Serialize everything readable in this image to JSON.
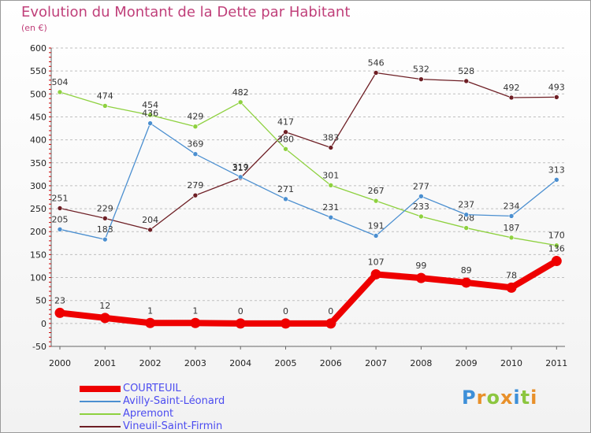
{
  "header": {
    "title": "Evolution du Montant de la Dette par Habitant",
    "unit": "(en €)"
  },
  "chart_data": {
    "type": "line",
    "x": [
      "2000",
      "2001",
      "2002",
      "2003",
      "2004",
      "2005",
      "2006",
      "2007",
      "2008",
      "2009",
      "2010",
      "2011"
    ],
    "ylim": [
      -50,
      600
    ],
    "yticks": [
      -50,
      0,
      50,
      100,
      150,
      200,
      250,
      300,
      350,
      400,
      450,
      500,
      550,
      600
    ],
    "grid": "horizontal dashed",
    "legend_position": "bottom-left",
    "series": [
      {
        "name": "COURTEUIL",
        "color": "#ee0000",
        "values": [
          23,
          12,
          1,
          1,
          0,
          0,
          0,
          107,
          99,
          89,
          78,
          136
        ]
      },
      {
        "name": "Avilly-Saint-Léonard",
        "color": "#4b8fd0",
        "values": [
          205,
          183,
          436,
          369,
          319,
          271,
          231,
          191,
          277,
          237,
          234,
          313
        ]
      },
      {
        "name": "Apremont",
        "color": "#8ed13f",
        "values": [
          504,
          474,
          454,
          429,
          482,
          380,
          301,
          267,
          233,
          208,
          187,
          170
        ]
      },
      {
        "name": "Vineuil-Saint-Firmin",
        "color": "#6e1f25",
        "values": [
          251,
          229,
          204,
          279,
          317,
          417,
          383,
          546,
          532,
          528,
          492,
          493
        ]
      }
    ]
  },
  "logo": {
    "letters": [
      {
        "ch": "P",
        "color": "#3d8fd8"
      },
      {
        "ch": "r",
        "color": "#e8902a"
      },
      {
        "ch": "o",
        "color": "#8cc63f"
      },
      {
        "ch": "x",
        "color": "#e8902a"
      },
      {
        "ch": "i",
        "color": "#3d8fd8"
      },
      {
        "ch": "t",
        "color": "#8cc63f"
      },
      {
        "ch": "i",
        "color": "#e8902a"
      }
    ]
  }
}
